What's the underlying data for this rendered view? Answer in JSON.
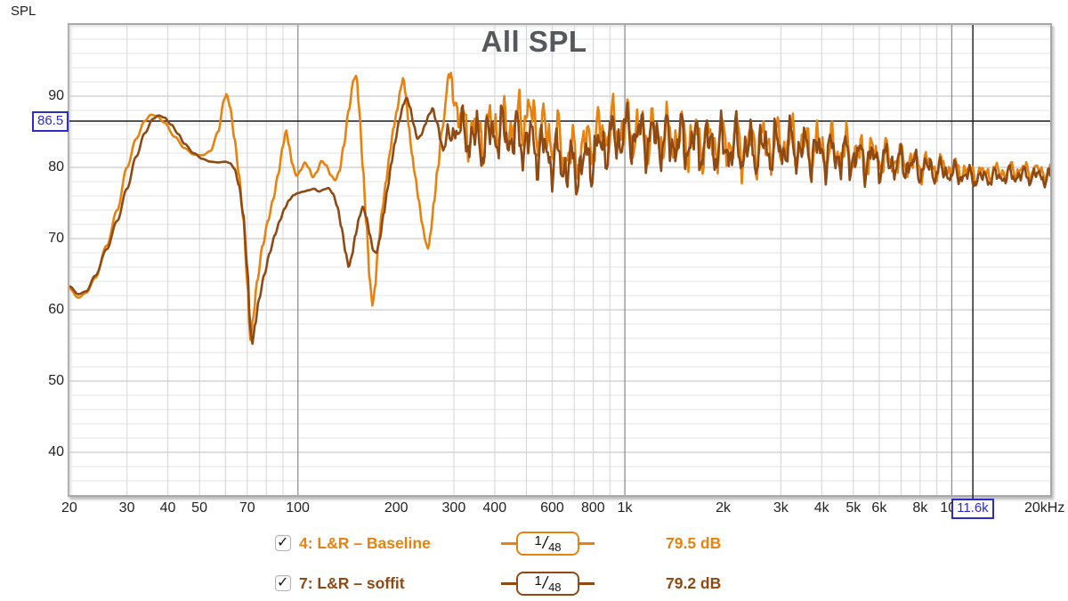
{
  "y_axis_title": "SPL",
  "cursor": {
    "spl_label": "86.5",
    "freq_label": "11.6k",
    "spl_db": 86.5,
    "freq_hz": 11600,
    "color": "#2c2cc8"
  },
  "axes": {
    "x": {
      "unit": "Hz",
      "scale": "log",
      "min_hz": 20,
      "max_hz": 20000,
      "ticks": [
        {
          "f": 20,
          "label": "20"
        },
        {
          "f": 30,
          "label": "30"
        },
        {
          "f": 40,
          "label": "40"
        },
        {
          "f": 50,
          "label": "50"
        },
        {
          "f": 70,
          "label": "70"
        },
        {
          "f": 100,
          "label": "100"
        },
        {
          "f": 200,
          "label": "200"
        },
        {
          "f": 300,
          "label": "300"
        },
        {
          "f": 400,
          "label": "400"
        },
        {
          "f": 600,
          "label": "600"
        },
        {
          "f": 800,
          "label": "800"
        },
        {
          "f": 1000,
          "label": "1k"
        },
        {
          "f": 2000,
          "label": "2k"
        },
        {
          "f": 3000,
          "label": "3k"
        },
        {
          "f": 4000,
          "label": "4k"
        },
        {
          "f": 5000,
          "label": "5k"
        },
        {
          "f": 6000,
          "label": "6k"
        },
        {
          "f": 8000,
          "label": "8k"
        },
        {
          "f": 10000,
          "label": "10k"
        },
        {
          "f": 20000,
          "label": "20kHz"
        }
      ]
    },
    "y": {
      "unit": "dB",
      "min_db": 34,
      "max_db": 100,
      "major_ticks": [
        90,
        80,
        70,
        60,
        50,
        40
      ],
      "minor_step_db": 2,
      "grid": true
    }
  },
  "chart_data": {
    "type": "line",
    "title": "All SPL",
    "xlabel": "Hz",
    "ylabel": "SPL (dB)",
    "x_scale": "log",
    "xlim": [
      20,
      20000
    ],
    "ylim": [
      34,
      100
    ],
    "legend_position": "bottom",
    "series": [
      {
        "name": "4: L&R – Baseline",
        "color": "#e8820f",
        "level": "79.5 dB",
        "smoothing_num": "1",
        "smoothing_den": "48",
        "checked": true,
        "noise_seed": 3.1,
        "anchors_hz_db": [
          [
            20,
            63
          ],
          [
            21.3,
            61.7
          ],
          [
            22.5,
            62.4
          ],
          [
            24,
            64.5
          ],
          [
            26,
            69
          ],
          [
            28,
            74
          ],
          [
            30,
            80
          ],
          [
            32,
            84
          ],
          [
            34,
            86.5
          ],
          [
            35.5,
            87.4
          ],
          [
            37,
            87.2
          ],
          [
            39,
            86.3
          ],
          [
            42,
            84.3
          ],
          [
            45,
            82.7
          ],
          [
            48,
            81.8
          ],
          [
            51,
            81.7
          ],
          [
            54,
            82.3
          ],
          [
            57,
            85
          ],
          [
            59.5,
            89.5
          ],
          [
            60.5,
            90.3
          ],
          [
            62,
            88.5
          ],
          [
            64,
            84
          ],
          [
            66,
            79
          ],
          [
            68,
            73
          ],
          [
            70,
            64
          ],
          [
            71.5,
            55.8
          ],
          [
            73,
            59
          ],
          [
            75,
            64
          ],
          [
            78,
            69
          ],
          [
            81,
            72.5
          ],
          [
            84,
            75.5
          ],
          [
            87,
            79
          ],
          [
            90,
            83
          ],
          [
            92,
            85.2
          ],
          [
            94,
            83
          ],
          [
            96,
            80.5
          ],
          [
            99,
            78.8
          ],
          [
            102,
            79.6
          ],
          [
            105,
            80.7
          ],
          [
            108,
            79.9
          ],
          [
            111,
            78.6
          ],
          [
            114,
            79.3
          ],
          [
            118,
            80.9
          ],
          [
            122,
            80.3
          ],
          [
            126,
            78.9
          ],
          [
            130,
            78.2
          ],
          [
            134,
            79.5
          ],
          [
            138,
            83
          ],
          [
            143,
            88
          ],
          [
            148,
            92.3
          ],
          [
            151,
            92.9
          ],
          [
            154,
            88
          ],
          [
            158,
            80
          ],
          [
            162,
            72
          ],
          [
            166,
            64
          ],
          [
            169,
            60.6
          ],
          [
            172,
            63
          ],
          [
            176,
            69
          ],
          [
            181,
            74
          ],
          [
            186,
            78
          ],
          [
            191,
            82
          ],
          [
            196,
            85.5
          ],
          [
            201,
            88
          ],
          [
            206,
            91
          ],
          [
            210,
            92.6
          ],
          [
            214,
            90
          ],
          [
            218,
            86
          ],
          [
            223,
            82
          ],
          [
            228,
            79
          ],
          [
            234,
            75.5
          ],
          [
            240,
            72
          ],
          [
            246,
            69.5
          ],
          [
            250,
            68.6
          ],
          [
            255,
            71
          ],
          [
            261,
            75
          ],
          [
            268,
            80
          ],
          [
            275,
            85
          ],
          [
            282,
            89
          ],
          [
            289,
            91.5
          ],
          [
            295,
            92.4
          ],
          [
            302,
            90
          ],
          [
            310,
            87
          ],
          [
            320,
            86
          ],
          [
            340,
            85
          ],
          [
            360,
            84.5
          ],
          [
            380,
            85
          ],
          [
            400,
            86
          ],
          [
            430,
            85.5
          ],
          [
            460,
            86
          ],
          [
            500,
            87.5
          ],
          [
            540,
            86
          ],
          [
            580,
            84.5
          ],
          [
            620,
            83.5
          ],
          [
            660,
            82
          ],
          [
            700,
            81.5
          ],
          [
            740,
            82.5
          ],
          [
            800,
            84
          ],
          [
            860,
            85
          ],
          [
            920,
            85.3
          ],
          [
            1000,
            85.5
          ],
          [
            1100,
            85
          ],
          [
            1200,
            84.6
          ],
          [
            1400,
            84.2
          ],
          [
            1700,
            83.8
          ],
          [
            2000,
            83.5
          ],
          [
            2400,
            83
          ],
          [
            2800,
            83.2
          ],
          [
            3200,
            83.4
          ],
          [
            3700,
            82.8
          ],
          [
            4200,
            82.4
          ],
          [
            4800,
            82
          ],
          [
            5500,
            81.7
          ],
          [
            6300,
            81.3
          ],
          [
            7200,
            80.9
          ],
          [
            8200,
            80.4
          ],
          [
            9300,
            80
          ],
          [
            10500,
            79.6
          ],
          [
            12000,
            79.2
          ],
          [
            14000,
            79.4
          ],
          [
            16000,
            79.6
          ],
          [
            18000,
            79.5
          ],
          [
            20000,
            79.2
          ]
        ]
      },
      {
        "name": "7: L&R – soffit",
        "color": "#8f4a14",
        "level": "79.2 dB",
        "smoothing_num": "1",
        "smoothing_den": "48",
        "checked": true,
        "noise_seed": 9.7,
        "anchors_hz_db": [
          [
            20,
            63.3
          ],
          [
            21.3,
            62.2
          ],
          [
            22.5,
            62.6
          ],
          [
            24,
            64.8
          ],
          [
            26,
            68.5
          ],
          [
            28,
            72.5
          ],
          [
            30,
            77
          ],
          [
            32,
            81.5
          ],
          [
            34,
            84.8
          ],
          [
            36,
            86.8
          ],
          [
            37.5,
            87.3
          ],
          [
            39,
            87
          ],
          [
            41,
            86
          ],
          [
            43,
            84.7
          ],
          [
            45,
            83.3
          ],
          [
            48,
            82
          ],
          [
            51,
            81.2
          ],
          [
            54,
            80.8
          ],
          [
            57,
            80.7
          ],
          [
            60,
            80.8
          ],
          [
            62,
            80.6
          ],
          [
            64,
            79.8
          ],
          [
            66,
            77.5
          ],
          [
            68,
            73.5
          ],
          [
            70,
            66
          ],
          [
            71.5,
            57.5
          ],
          [
            72.5,
            55.2
          ],
          [
            74,
            58
          ],
          [
            76,
            61.5
          ],
          [
            79,
            65
          ],
          [
            82,
            68
          ],
          [
            85,
            70.5
          ],
          [
            88,
            72.5
          ],
          [
            91,
            74.2
          ],
          [
            94,
            75.4
          ],
          [
            97,
            76.1
          ],
          [
            100,
            76.4
          ],
          [
            104,
            76.6
          ],
          [
            108,
            76.8
          ],
          [
            112,
            77
          ],
          [
            116,
            76.6
          ],
          [
            120,
            76.9
          ],
          [
            124,
            77.1
          ],
          [
            128,
            76.3
          ],
          [
            132,
            74.5
          ],
          [
            136,
            71.5
          ],
          [
            140,
            68
          ],
          [
            143,
            66
          ],
          [
            146,
            67.5
          ],
          [
            150,
            70.5
          ],
          [
            154,
            73
          ],
          [
            158,
            74.5
          ],
          [
            162,
            73
          ],
          [
            166,
            70.5
          ],
          [
            170,
            68.3
          ],
          [
            174,
            68
          ],
          [
            178,
            70
          ],
          [
            183,
            73.5
          ],
          [
            188,
            77
          ],
          [
            193,
            80.5
          ],
          [
            198,
            83.5
          ],
          [
            204,
            86.5
          ],
          [
            210,
            88.8
          ],
          [
            215,
            89.8
          ],
          [
            220,
            88.5
          ],
          [
            226,
            86
          ],
          [
            232,
            84
          ],
          [
            238,
            84.5
          ],
          [
            245,
            86
          ],
          [
            252,
            87.5
          ],
          [
            258,
            88
          ],
          [
            265,
            86.5
          ],
          [
            272,
            84.5
          ],
          [
            280,
            83
          ],
          [
            290,
            84
          ],
          [
            300,
            85.5
          ],
          [
            320,
            85
          ],
          [
            340,
            84
          ],
          [
            360,
            83.5
          ],
          [
            380,
            84
          ],
          [
            400,
            85
          ],
          [
            430,
            84.5
          ],
          [
            470,
            84
          ],
          [
            510,
            83.5
          ],
          [
            550,
            82.5
          ],
          [
            600,
            81.5
          ],
          [
            650,
            80.5
          ],
          [
            700,
            79.8
          ],
          [
            750,
            80.5
          ],
          [
            810,
            82
          ],
          [
            880,
            83.5
          ],
          [
            950,
            84.2
          ],
          [
            1030,
            84.8
          ],
          [
            1120,
            84.4
          ],
          [
            1250,
            84
          ],
          [
            1450,
            83.6
          ],
          [
            1700,
            83.2
          ],
          [
            2000,
            82.8
          ],
          [
            2400,
            82.4
          ],
          [
            2800,
            82.6
          ],
          [
            3200,
            82.9
          ],
          [
            3700,
            82.3
          ],
          [
            4200,
            81.9
          ],
          [
            4800,
            81.5
          ],
          [
            5500,
            81.2
          ],
          [
            6300,
            80.8
          ],
          [
            7200,
            80.4
          ],
          [
            8200,
            79.9
          ],
          [
            9300,
            79.4
          ],
          [
            10500,
            79
          ],
          [
            12000,
            78.5
          ],
          [
            14000,
            78.7
          ],
          [
            16000,
            78.9
          ],
          [
            18000,
            78.8
          ],
          [
            20000,
            78.6
          ]
        ]
      }
    ]
  },
  "style": {
    "grid_minor_h": "#e6e6e6",
    "grid_major_h": "#c9c9c9",
    "grid_minor_v": "#d4d4d4",
    "grid_major_v": "#909090",
    "crosshair": "#1a1a1a",
    "title_color": "#55585c"
  }
}
